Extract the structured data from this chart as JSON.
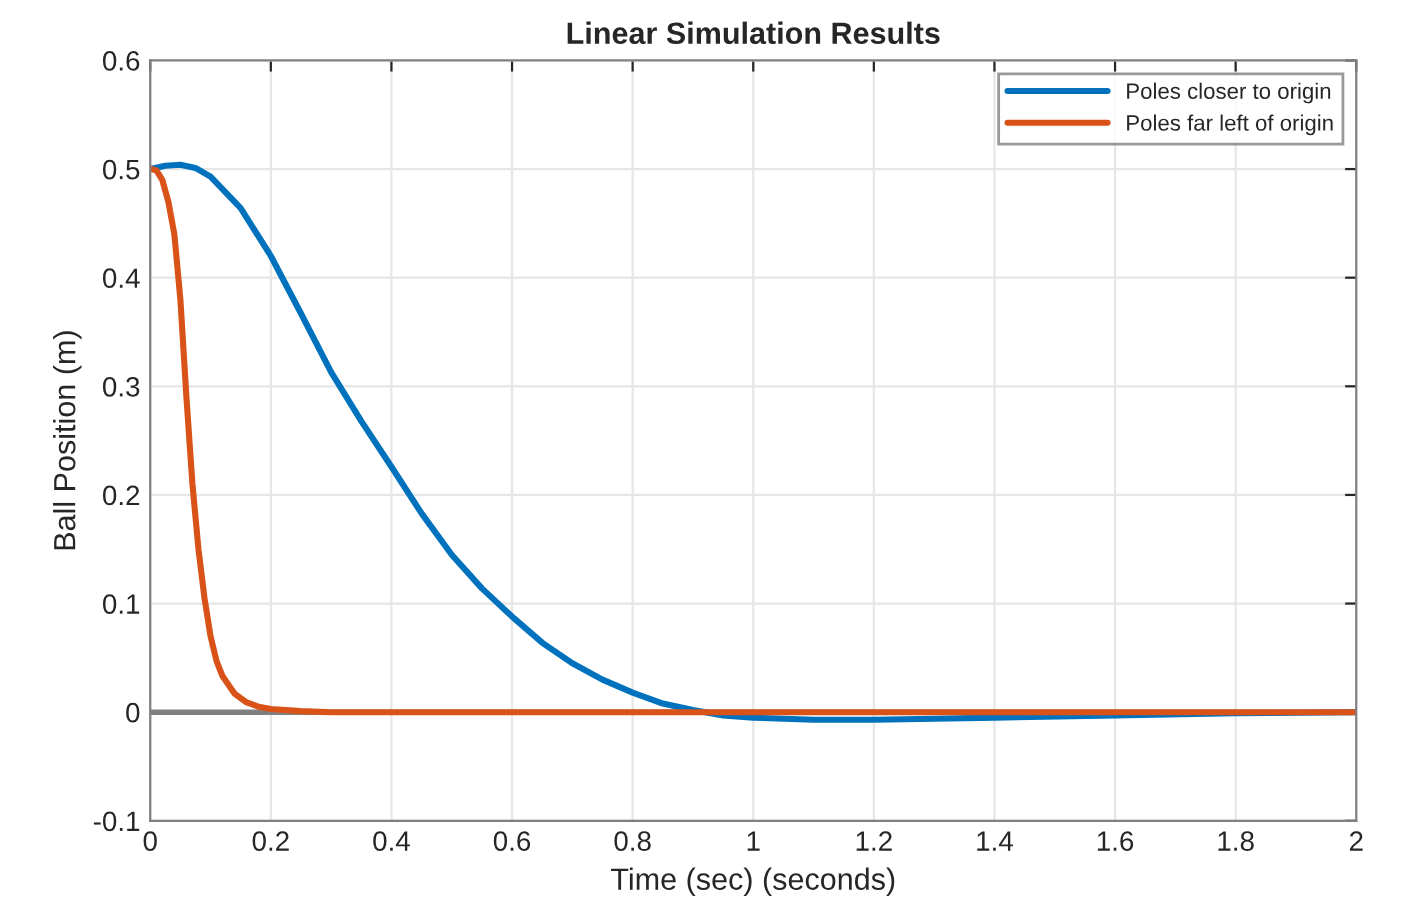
{
  "chart_data": {
    "type": "line",
    "title": "Linear Simulation Results",
    "xlabel": "Time (sec) (seconds)",
    "ylabel": "Ball Position (m)",
    "xlim": [
      0,
      2
    ],
    "ylim": [
      -0.1,
      0.6
    ],
    "xticks": [
      0,
      0.2,
      0.4,
      0.6,
      0.8,
      1,
      1.2,
      1.4,
      1.6,
      1.8,
      2
    ],
    "yticks": [
      -0.1,
      0,
      0.1,
      0.2,
      0.3,
      0.4,
      0.5,
      0.6
    ],
    "grid": true,
    "legend": "top right",
    "line_style": "solid",
    "ref_lines": [
      {
        "axis": "y",
        "value": 0,
        "color": "#808080"
      }
    ],
    "series": [
      {
        "name": "Poles closer to origin",
        "color": "#0072bd",
        "x": [
          0,
          0.025,
          0.05,
          0.075,
          0.1,
          0.15,
          0.2,
          0.25,
          0.3,
          0.35,
          0.4,
          0.45,
          0.5,
          0.55,
          0.6,
          0.65,
          0.7,
          0.75,
          0.8,
          0.85,
          0.9,
          0.95,
          1.0,
          1.1,
          1.2,
          1.3,
          1.4,
          1.6,
          1.8,
          2.0
        ],
        "values": [
          0.5,
          0.503,
          0.504,
          0.501,
          0.493,
          0.464,
          0.42,
          0.367,
          0.313,
          0.268,
          0.226,
          0.183,
          0.145,
          0.114,
          0.088,
          0.064,
          0.045,
          0.03,
          0.018,
          0.008,
          0.002,
          -0.003,
          -0.005,
          -0.007,
          -0.007,
          -0.006,
          -0.005,
          -0.003,
          -0.001,
          0
        ]
      },
      {
        "name": "Poles far left of origin",
        "color": "#d95319",
        "x": [
          0,
          0.01,
          0.02,
          0.03,
          0.04,
          0.05,
          0.06,
          0.07,
          0.08,
          0.09,
          0.1,
          0.11,
          0.12,
          0.14,
          0.16,
          0.18,
          0.2,
          0.25,
          0.3,
          0.4,
          2.0
        ],
        "values": [
          0.5,
          0.499,
          0.49,
          0.47,
          0.44,
          0.38,
          0.29,
          0.21,
          0.15,
          0.105,
          0.07,
          0.047,
          0.033,
          0.017,
          0.009,
          0.005,
          0.003,
          0.001,
          0,
          0,
          0
        ]
      }
    ]
  }
}
